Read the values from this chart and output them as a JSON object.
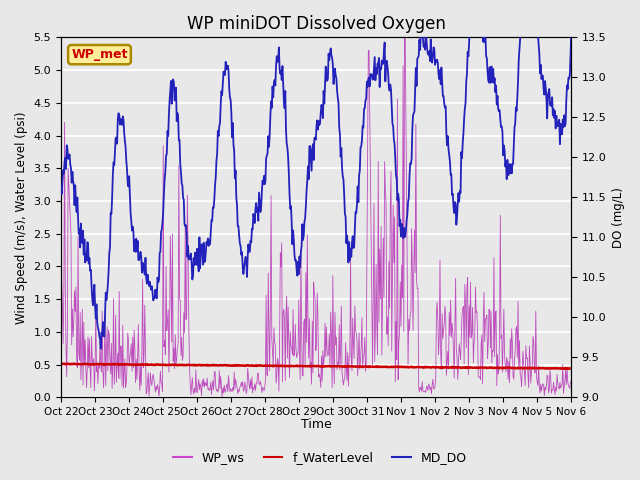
{
  "title": "WP miniDOT Dissolved Oxygen",
  "ylabel_left": "Wind Speed (m/s), Water Level (psi)",
  "ylabel_right": "DO (mg/L)",
  "xlabel": "Time",
  "ylim_left": [
    0.0,
    5.5
  ],
  "ylim_right": [
    9.0,
    13.5
  ],
  "yticks_left": [
    0.0,
    0.5,
    1.0,
    1.5,
    2.0,
    2.5,
    3.0,
    3.5,
    4.0,
    4.5,
    5.0,
    5.5
  ],
  "yticks_right": [
    9.0,
    9.5,
    10.0,
    10.5,
    11.0,
    11.5,
    12.0,
    12.5,
    13.0,
    13.5
  ],
  "xtick_labels": [
    "Oct 22",
    "Oct 23",
    "Oct 24",
    "Oct 25",
    "Oct 26",
    "Oct 27",
    "Oct 28",
    "Oct 29",
    "Oct 30",
    "Oct 31",
    "Nov 1",
    "Nov 2",
    "Nov 3",
    "Nov 4",
    "Nov 5",
    "Nov 6"
  ],
  "legend_labels": [
    "WP_ws",
    "f_WaterLevel",
    "MD_DO"
  ],
  "legend_colors": [
    "#CC44CC",
    "#CC0000",
    "#2222BB"
  ],
  "wp_met_label": "WP_met",
  "wp_met_bg": "#AA8800",
  "wp_met_text": "#CC0000",
  "background_color": "#E8E8E8",
  "grid_color": "#FFFFFF",
  "title_fontsize": 12,
  "ws_color": "#BB44BB",
  "wl_color": "#CC0000",
  "do_color": "#2222BB"
}
